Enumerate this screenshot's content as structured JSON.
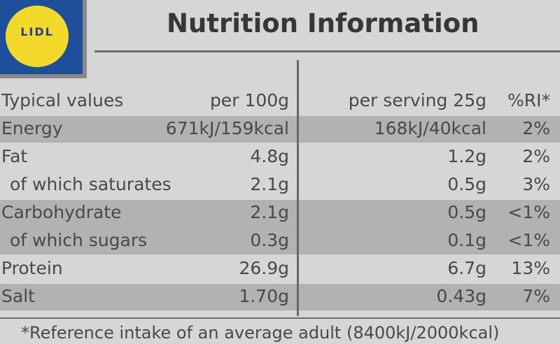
{
  "logo": "LIDL",
  "title": "Nutrition Information",
  "table": {
    "header": [
      "Typical values",
      "per 100g",
      "per serving 25g",
      "%RI*"
    ],
    "rows": [
      {
        "lines": [
          [
            "Energy",
            "671kJ/159kcal",
            "168kJ/40kcal",
            "2%"
          ]
        ]
      },
      {
        "lines": [
          [
            "Fat",
            "4.8g",
            "1.2g",
            "2%"
          ],
          [
            "of which saturates",
            "2.1g",
            "0.5g",
            "3%"
          ]
        ]
      },
      {
        "lines": [
          [
            "Carbohydrate",
            "2.1g",
            "0.5g",
            "<1%"
          ],
          [
            "of which sugars",
            "0.3g",
            "0.1g",
            "<1%"
          ]
        ]
      },
      {
        "lines": [
          [
            "Protein",
            "26.9g",
            "6.7g",
            "13%"
          ]
        ]
      },
      {
        "lines": [
          [
            "Salt",
            "1.70g",
            "0.43g",
            "7%"
          ]
        ]
      }
    ]
  },
  "footnote": "*Reference intake of an average adult (8400kJ/2000kcal)"
}
